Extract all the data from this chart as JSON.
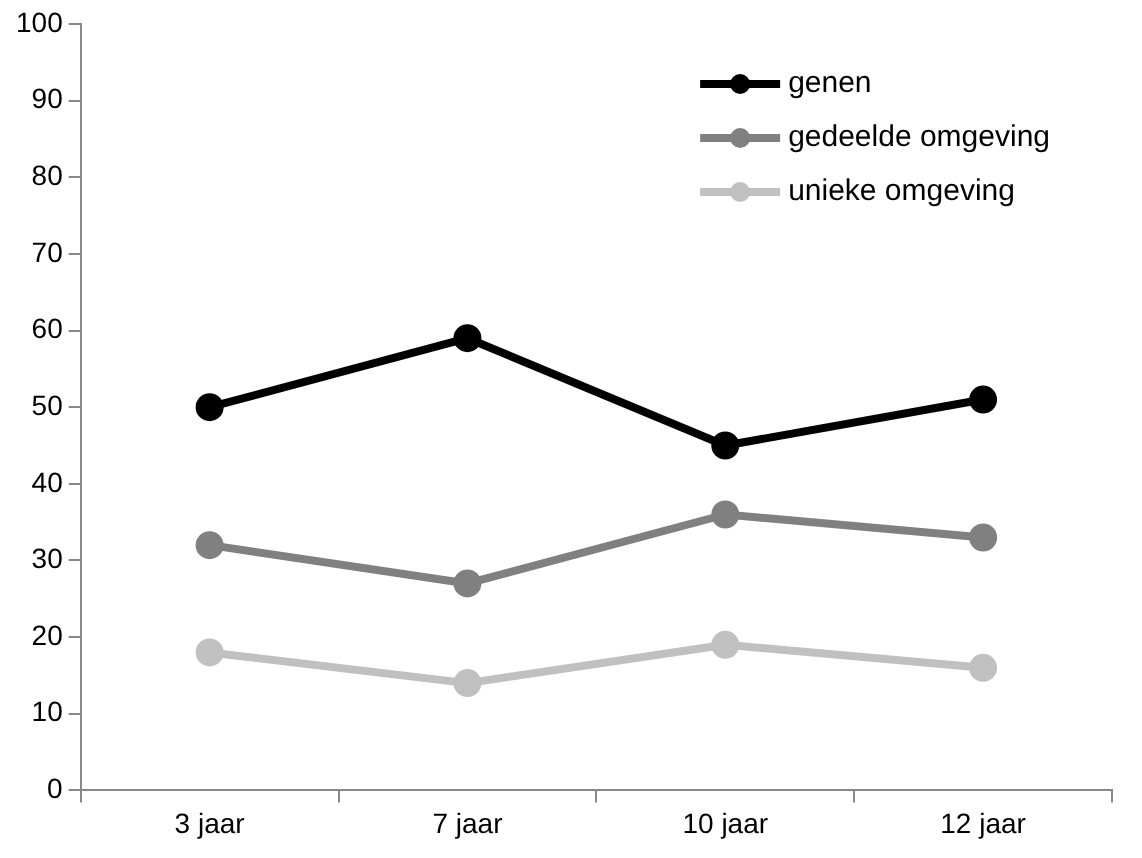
{
  "chart_data": {
    "type": "line",
    "categories": [
      "3 jaar",
      "7 jaar",
      "10 jaar",
      "12 jaar"
    ],
    "series": [
      {
        "name": "genen",
        "color": "#000000",
        "values": [
          50,
          59,
          45,
          51
        ]
      },
      {
        "name": "gedeelde omgeving",
        "color": "#808080",
        "values": [
          32,
          27,
          36,
          33
        ]
      },
      {
        "name": "unieke omgeving",
        "color": "#c0c0c0",
        "values": [
          18,
          14,
          19,
          16
        ]
      }
    ],
    "ylim": [
      0,
      100
    ],
    "yticks": [
      0,
      10,
      20,
      30,
      40,
      50,
      60,
      70,
      80,
      90,
      100
    ],
    "grid": false,
    "legend": "top right",
    "marker": "circle",
    "line_style": "solid"
  }
}
